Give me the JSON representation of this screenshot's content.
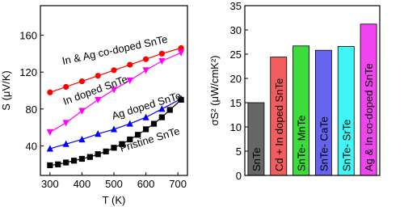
{
  "chart_data": [
    {
      "type": "line",
      "xlabel": "T (K)",
      "ylabel": "S (μV/K)",
      "xlim": [
        270,
        730
      ],
      "ylim": [
        8,
        192
      ],
      "xticks": [
        300,
        400,
        500,
        600,
        700
      ],
      "yticks": [
        40,
        80,
        120,
        160
      ],
      "series": [
        {
          "name": "In & Ag co-doped SnTe",
          "color": "#ff0000",
          "marker": "circle",
          "x": [
            300,
            350,
            400,
            450,
            500,
            550,
            600,
            650,
            710
          ],
          "values": [
            98,
            104,
            110,
            116,
            122,
            128,
            134,
            140,
            146
          ]
        },
        {
          "name": "In doped SnTe",
          "color": "#ff00ff",
          "marker": "triangle-down",
          "x": [
            300,
            350,
            400,
            450,
            500,
            550,
            600,
            650,
            710
          ],
          "values": [
            55,
            65,
            78,
            90,
            101,
            111,
            122,
            132,
            141
          ]
        },
        {
          "name": "Ag doped SnTe",
          "color": "#0000ff",
          "marker": "triangle-up",
          "x": [
            300,
            350,
            400,
            450,
            500,
            550,
            600,
            650,
            710
          ],
          "values": [
            37,
            42,
            47,
            53,
            58,
            64,
            71,
            80,
            91
          ]
        },
        {
          "name": "Pristine SnTe",
          "color": "#000000",
          "marker": "square",
          "x": [
            300,
            325,
            350,
            375,
            400,
            425,
            450,
            475,
            500,
            525,
            550,
            575,
            600,
            625,
            650,
            675,
            710
          ],
          "values": [
            19,
            20,
            22,
            24,
            26,
            28,
            31,
            34,
            38,
            42,
            47,
            52,
            58,
            64,
            71,
            79,
            90
          ]
        }
      ]
    },
    {
      "type": "bar",
      "ylabel": "σS² (μW/cmK²)",
      "ylim": [
        0,
        35
      ],
      "yticks": [
        0,
        5,
        10,
        15,
        20,
        25,
        30,
        35
      ],
      "categories": [
        "SnTe",
        "Cd + In doped SnTe",
        "SnTe- MnTe",
        "SnTe- CaTe",
        "SnTe- SrTe",
        "Ag & In co-doped SnTe"
      ],
      "values": [
        15,
        24.4,
        26.7,
        25.8,
        26.6,
        31.2
      ],
      "colors": [
        "#666666",
        "#f25c5c",
        "#3ddc3d",
        "#6464ee",
        "#40f5f5",
        "#f044f0"
      ]
    }
  ]
}
